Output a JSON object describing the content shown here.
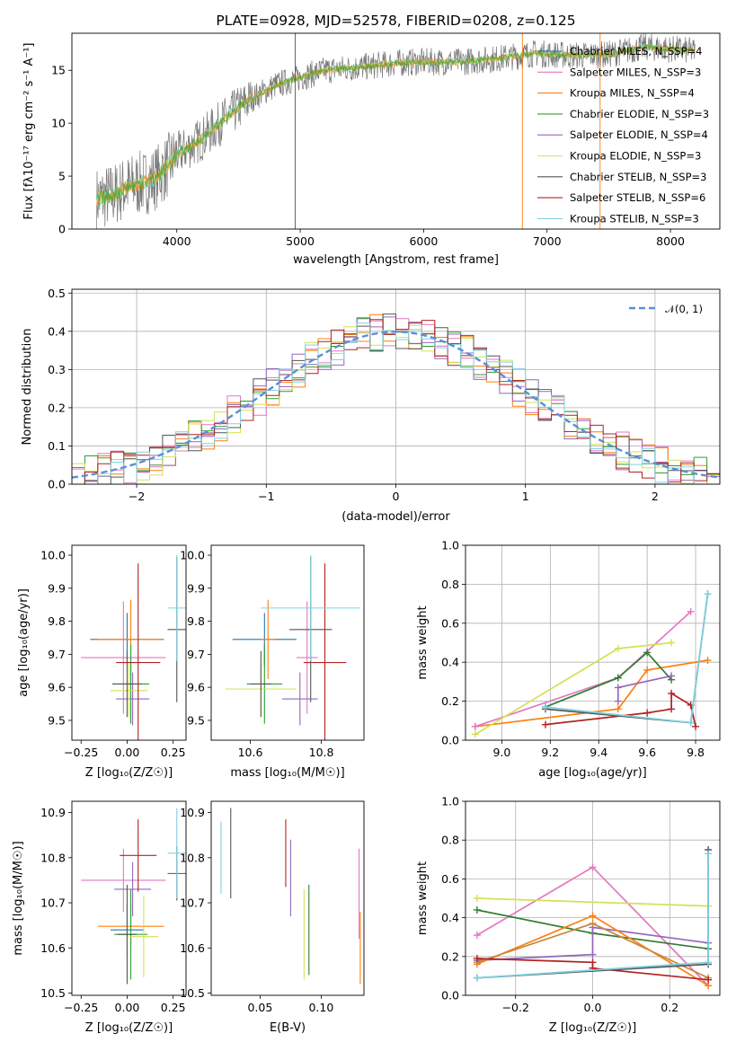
{
  "colors": [
    "#1f77b4",
    "#e377c2",
    "#ff7f0e",
    "#2ca02c",
    "#9467bd",
    "#d4e157",
    "#555555",
    "#b22222",
    "#80d0e0"
  ],
  "chart_data": [
    {
      "id": "spectrum",
      "type": "line",
      "title": "PLATE=0928, MJD=52578, FIBERID=0208, z=0.125",
      "xlabel": "wavelength [Angstrom, rest frame]",
      "ylabel": "Flux [fλ10⁻¹⁷ erg cm⁻² s⁻¹ A⁻¹]",
      "xlim": [
        3150,
        8400
      ],
      "ylim": [
        0,
        18.5
      ],
      "xticks": [
        "4000",
        "5000",
        "6000",
        "7000",
        "8000"
      ],
      "yticks": [
        "0",
        "5",
        "10",
        "15"
      ],
      "legend_position": "top-right",
      "series_names": [
        "Chabrier MILES, N_SSP=4",
        "Salpeter MILES, N_SSP=3",
        "Kroupa MILES, N_SSP=4",
        "Chabrier ELODIE, N_SSP=3",
        "Salpeter ELODIE, N_SSP=4",
        "Kroupa ELODIE, N_SSP=3",
        "Chabrier STELIB, N_SSP=3",
        "Salpeter STELIB, N_SSP=6",
        "Kroupa STELIB, N_SSP=3"
      ],
      "continuum": {
        "x": [
          3350,
          3500,
          3600,
          3700,
          3800,
          3900,
          4000,
          4200,
          4400,
          4600,
          4800,
          5000,
          5200,
          5500,
          5800,
          6000,
          6300,
          6600,
          6900,
          7200,
          7500,
          7800,
          8000,
          8200
        ],
        "y": [
          2.8,
          3.3,
          4.0,
          4.3,
          4.6,
          5.6,
          7.0,
          8.5,
          10.5,
          12.3,
          13.6,
          14.3,
          15.0,
          15.3,
          15.7,
          15.8,
          15.8,
          16.1,
          16.6,
          16.4,
          16.5,
          17.2,
          17.0,
          16.8
        ]
      }
    },
    {
      "id": "residuals",
      "type": "histogram",
      "xlabel": "(data-model)/error",
      "ylabel": "Normed distribution",
      "xlim": [
        -2.5,
        2.5
      ],
      "ylim": [
        0,
        0.51
      ],
      "xticks": [
        "−2",
        "−1",
        "0",
        "1",
        "2"
      ],
      "yticks": [
        "0.0",
        "0.1",
        "0.2",
        "0.3",
        "0.4",
        "0.5"
      ],
      "grid": true,
      "legend_position": "top-right",
      "legend_label": "𝒩(0, 1)",
      "bins": [
        -2.45,
        -2.35,
        -2.25,
        -2.15,
        -2.05,
        -1.95,
        -1.85,
        -1.75,
        -1.65,
        -1.55,
        -1.45,
        -1.35,
        -1.25,
        -1.15,
        -1.05,
        -0.95,
        -0.85,
        -0.75,
        -0.65,
        -0.55,
        -0.45,
        -0.35,
        -0.25,
        -0.15,
        -0.05,
        0.05,
        0.15,
        0.25,
        0.35,
        0.45,
        0.55,
        0.65,
        0.75,
        0.85,
        0.95,
        1.05,
        1.15,
        1.25,
        1.35,
        1.45,
        1.55,
        1.65,
        1.75,
        1.85,
        1.95,
        2.05,
        2.15,
        2.25,
        2.35,
        2.45
      ]
    },
    {
      "id": "age-vs-Z",
      "type": "errorbar",
      "xlabel": "Z [log₁₀(Z/Z☉)]",
      "ylabel": "age  [log₁₀(age/yr)]",
      "xlim": [
        -0.3,
        0.32
      ],
      "ylim": [
        9.44,
        10.03
      ],
      "xticks": [
        "−0.25",
        "0.00",
        "0.25"
      ],
      "yticks": [
        "9.5",
        "9.6",
        "9.7",
        "9.8",
        "9.9",
        "10.0"
      ],
      "points": [
        {
          "x": 0.0,
          "xe": 0.2,
          "y": 9.745,
          "ye": 0.08
        },
        {
          "x": -0.02,
          "xe": 0.23,
          "y": 9.69,
          "ye": 0.17
        },
        {
          "x": 0.02,
          "xe": 0.18,
          "y": 9.745,
          "ye": 0.12
        },
        {
          "x": 0.02,
          "xe": 0.1,
          "y": 9.61,
          "ye": 0.12
        },
        {
          "x": 0.03,
          "xe": 0.09,
          "y": 9.565,
          "ye": 0.08
        },
        {
          "x": 0.01,
          "xe": 0.1,
          "y": 9.59,
          "ye": 0.08
        },
        {
          "x": 0.0,
          "xe": 0.08,
          "y": 9.61,
          "ye": 0.1
        },
        {
          "x": 0.06,
          "xe": 0.12,
          "y": 9.675,
          "ye": 0.3
        },
        {
          "x": 0.27,
          "xe": 0.05,
          "y": 9.775,
          "ye": 0.22
        },
        {
          "x": 0.27,
          "xe": 0.05,
          "y": 9.84,
          "ye": 0.16
        }
      ]
    },
    {
      "id": "age-vs-mass",
      "type": "errorbar",
      "xlabel": "mass [log₁₀(M/M☉)]",
      "ylabel": "",
      "xlim": [
        10.49,
        10.92
      ],
      "ylim": [
        9.44,
        10.03
      ],
      "xticks": [
        "10.6",
        "10.8"
      ],
      "yticks": [
        "9.5",
        "9.6",
        "9.7",
        "9.8",
        "9.9",
        "10.0"
      ],
      "points": [
        {
          "x": 10.64,
          "xe": 0.09,
          "y": 9.745,
          "ye": 0.08
        },
        {
          "x": 10.76,
          "xe": 0.03,
          "y": 9.69,
          "ye": 0.17
        },
        {
          "x": 10.65,
          "xe": 0.02,
          "y": 9.745,
          "ye": 0.12
        },
        {
          "x": 10.64,
          "xe": 0.05,
          "y": 9.61,
          "ye": 0.12
        },
        {
          "x": 10.74,
          "xe": 0.05,
          "y": 9.565,
          "ye": 0.08
        },
        {
          "x": 10.63,
          "xe": 0.1,
          "y": 9.595,
          "ye": 0.08
        },
        {
          "x": 10.63,
          "xe": 0.03,
          "y": 9.61,
          "ye": 0.1
        },
        {
          "x": 10.81,
          "xe": 0.06,
          "y": 9.675,
          "ye": 0.3
        },
        {
          "x": 10.77,
          "xe": 0.06,
          "y": 9.775,
          "ye": 0.22
        },
        {
          "x": 10.77,
          "xe": 0.14,
          "y": 9.84,
          "ye": 0.16
        }
      ]
    },
    {
      "id": "mass-weight-vs-age",
      "type": "line",
      "xlabel": "age  [log₁₀(age/yr)]",
      "ylabel": "mass weight",
      "xlim": [
        8.85,
        9.9
      ],
      "ylim": [
        0,
        1.0
      ],
      "xticks": [
        "9.0",
        "9.2",
        "9.4",
        "9.6",
        "9.8"
      ],
      "yticks": [
        "0.0",
        "0.2",
        "0.4",
        "0.6",
        "0.8",
        "1.0"
      ],
      "grid": true,
      "series": [
        {
          "x": [
            8.89,
            9.48,
            9.6,
            9.85
          ],
          "y": [
            0.07,
            0.16,
            0.36,
            0.41
          ],
          "color": "#ff7f0e"
        },
        {
          "x": [
            8.89,
            9.48,
            9.78
          ],
          "y": [
            0.07,
            0.32,
            0.66
          ],
          "color": "#e377c2"
        },
        {
          "x": [
            8.89,
            9.48,
            9.7
          ],
          "y": [
            0.03,
            0.47,
            0.5
          ],
          "color": "#d4e157"
        },
        {
          "x": [
            9.18,
            9.48,
            9.6,
            9.7
          ],
          "y": [
            0.17,
            0.32,
            0.45,
            0.31
          ],
          "color": "#2e7d32"
        },
        {
          "x": [
            9.48,
            9.48,
            9.7
          ],
          "y": [
            0.2,
            0.27,
            0.33
          ],
          "color": "#9467bd"
        },
        {
          "x": [
            9.18,
            9.6,
            9.7,
            9.7,
            9.78,
            9.8
          ],
          "y": [
            0.08,
            0.14,
            0.16,
            0.24,
            0.18,
            0.07
          ],
          "color": "#b22222"
        },
        {
          "x": [
            9.18,
            9.78,
            9.85
          ],
          "y": [
            0.16,
            0.09,
            0.75
          ],
          "color": "#555555"
        },
        {
          "x": [
            9.18,
            9.78,
            9.85
          ],
          "y": [
            0.17,
            0.09,
            0.75
          ],
          "color": "#80d0e0"
        }
      ]
    },
    {
      "id": "mass-vs-Z",
      "type": "errorbar",
      "xlabel": "Z [log₁₀(Z/Z☉)]",
      "ylabel": "mass [log₁₀(M/M☉)]",
      "xlim": [
        -0.3,
        0.32
      ],
      "ylim": [
        10.495,
        10.925
      ],
      "xticks": [
        "−0.25",
        "0.00",
        "0.25"
      ],
      "yticks": [
        "10.5",
        "10.6",
        "10.7",
        "10.8",
        "10.9"
      ],
      "points": [
        {
          "x": 0.0,
          "xe": 0.09,
          "y": 10.64,
          "ye": 0.06
        },
        {
          "x": -0.02,
          "xe": 0.23,
          "y": 10.75,
          "ye": 0.07
        },
        {
          "x": 0.02,
          "xe": 0.18,
          "y": 10.648,
          "ye": 0.05
        },
        {
          "x": 0.02,
          "xe": 0.09,
          "y": 10.63,
          "ye": 0.1
        },
        {
          "x": 0.03,
          "xe": 0.1,
          "y": 10.73,
          "ye": 0.06
        },
        {
          "x": 0.09,
          "xe": 0.08,
          "y": 10.625,
          "ye": 0.09
        },
        {
          "x": 0.0,
          "xe": 0.05,
          "y": 10.63,
          "ye": 0.11
        },
        {
          "x": 0.06,
          "xe": 0.1,
          "y": 10.805,
          "ye": 0.08
        },
        {
          "x": 0.27,
          "xe": 0.05,
          "y": 10.765,
          "ye": 0.06
        },
        {
          "x": 0.27,
          "xe": 0.05,
          "y": 10.81,
          "ye": 0.1
        }
      ]
    },
    {
      "id": "mass-vs-EBV",
      "type": "errorbar",
      "xlabel": "E(B-V)",
      "ylabel": "",
      "xlim": [
        0.01,
        0.135
      ],
      "ylim": [
        10.495,
        10.925
      ],
      "xticks": [
        "0.05",
        "0.10"
      ],
      "yticks": [
        "10.5",
        "10.6",
        "10.7",
        "10.8",
        "10.9"
      ],
      "points": [
        {
          "x": 0.018,
          "y": 10.8,
          "ye": 0.08,
          "color": "#80d0e0"
        },
        {
          "x": 0.026,
          "y": 10.81,
          "ye": 0.1,
          "color": "#555555"
        },
        {
          "x": 0.071,
          "y": 10.81,
          "ye": 0.075,
          "color": "#b22222"
        },
        {
          "x": 0.075,
          "y": 10.755,
          "ye": 0.085,
          "color": "#9467bd"
        },
        {
          "x": 0.086,
          "y": 10.63,
          "ye": 0.1,
          "color": "#d4e157"
        },
        {
          "x": 0.09,
          "y": 10.64,
          "ye": 0.1,
          "color": "#2e7d32"
        },
        {
          "x": 0.131,
          "y": 10.72,
          "ye": 0.1,
          "color": "#e377c2"
        },
        {
          "x": 0.132,
          "y": 10.6,
          "ye": 0.08,
          "color": "#ff7f0e"
        }
      ]
    },
    {
      "id": "mass-weight-vs-Z",
      "type": "line",
      "xlabel": "Z [log₁₀(Z/Z☉)]",
      "ylabel": "mass weight",
      "xlim": [
        -0.33,
        0.33
      ],
      "ylim": [
        0,
        1.0
      ],
      "xticks": [
        "−0.2",
        "0.0",
        "0.2"
      ],
      "yticks": [
        "0.0",
        "0.2",
        "0.4",
        "0.6",
        "0.8",
        "1.0"
      ],
      "grid": true,
      "series": [
        {
          "x": [
            -0.3,
            0.0,
            0.3
          ],
          "y": [
            0.31,
            0.66,
            0.05
          ],
          "color": "#e377c2"
        },
        {
          "x": [
            -0.3,
            0.3
          ],
          "y": [
            0.5,
            0.46
          ],
          "color": "#d4e157"
        },
        {
          "x": [
            -0.3,
            0.0,
            0.3
          ],
          "y": [
            0.44,
            0.32,
            0.24
          ],
          "color": "#2e7d32"
        },
        {
          "x": [
            -0.3,
            0.0,
            0.0,
            0.3
          ],
          "y": [
            0.18,
            0.21,
            0.35,
            0.27
          ],
          "color": "#9467bd"
        },
        {
          "x": [
            -0.3,
            0.0,
            0.3
          ],
          "y": [
            0.16,
            0.41,
            0.05
          ],
          "color": "#ff7f0e"
        },
        {
          "x": [
            -0.3,
            0.0,
            0.3
          ],
          "y": [
            0.17,
            0.37,
            0.09
          ],
          "color": "#c68642"
        },
        {
          "x": [
            -0.3,
            0.0,
            0.0,
            0.3
          ],
          "y": [
            0.19,
            0.17,
            0.14,
            0.08
          ],
          "color": "#b22222"
        },
        {
          "x": [
            -0.3,
            0.3,
            0.3
          ],
          "y": [
            0.09,
            0.16,
            0.75
          ],
          "color": "#555555"
        },
        {
          "x": [
            -0.3,
            0.3,
            0.3
          ],
          "y": [
            0.09,
            0.17,
            0.73
          ],
          "color": "#80d0e0"
        }
      ]
    }
  ]
}
